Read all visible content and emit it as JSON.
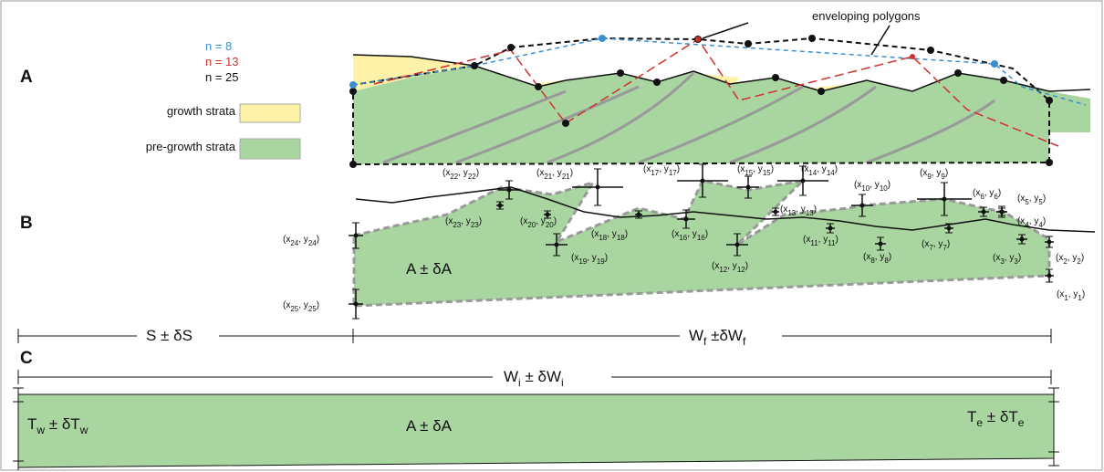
{
  "panels": [
    "A",
    "B",
    "C"
  ],
  "legend": {
    "n_labels": [
      "n = 8",
      "n = 13",
      "n = 25"
    ],
    "items": [
      "growth strata",
      "pre-growth strata"
    ]
  },
  "annotation": "enveloping polygons",
  "panel_b": {
    "area": "A ± δA",
    "points": [
      [
        "(x",
        "1",
        ", y",
        "1",
        ")"
      ],
      [
        "(x",
        "2",
        ", y",
        "2",
        ")"
      ],
      [
        "(x",
        "3",
        ", y",
        "3",
        ")"
      ],
      [
        "(x",
        "4",
        ", y",
        "4",
        ")"
      ],
      [
        "(x",
        "5",
        ", y",
        "5",
        ")"
      ],
      [
        "(x",
        "6",
        ", y",
        "6",
        ")"
      ],
      [
        "(x",
        "7",
        ", y",
        "7",
        ")"
      ],
      [
        "(x",
        "8",
        ", y",
        "8",
        ")"
      ],
      [
        "(x",
        "9",
        ", y",
        "9",
        ")"
      ],
      [
        "(x",
        "10",
        ", y",
        "10",
        ")"
      ],
      [
        "(x",
        "11",
        ", y",
        "11",
        ")"
      ],
      [
        "(x",
        "12",
        ", y",
        "12",
        ")"
      ],
      [
        "(x",
        "13",
        ", y",
        "13",
        ")"
      ],
      [
        "(x",
        "14",
        ", y",
        "14",
        ")"
      ],
      [
        "(x",
        "15",
        ", y",
        "15",
        ")"
      ],
      [
        "(x",
        "16",
        ", y",
        "16",
        ")"
      ],
      [
        "(x",
        "17",
        ", y",
        "17",
        ")"
      ],
      [
        "(x",
        "18",
        ", y",
        "18",
        ")"
      ],
      [
        "(x",
        "19",
        ", y",
        "19",
        ")"
      ],
      [
        "(x",
        "20",
        ", y",
        "20",
        ")"
      ],
      [
        "(x",
        "21",
        ", y",
        "21",
        ")"
      ],
      [
        "(x",
        "22",
        ", y",
        "22",
        ")"
      ],
      [
        "(x",
        "23",
        ", y",
        "23",
        ")"
      ],
      [
        "(x",
        "24",
        ", y",
        "24",
        ")"
      ],
      [
        "(x",
        "25",
        ", y",
        "25",
        ")"
      ]
    ]
  },
  "measures": {
    "s": [
      "S ± δS"
    ],
    "wf": [
      "W",
      "f",
      " ±δW",
      "f"
    ],
    "wi": [
      "W",
      "i",
      " ± δW",
      "i"
    ],
    "tw": [
      "T",
      "w",
      " ± δT",
      "w"
    ],
    "te": [
      "T",
      "e",
      " ± δT",
      "e"
    ],
    "area_c": "A ± δA"
  }
}
